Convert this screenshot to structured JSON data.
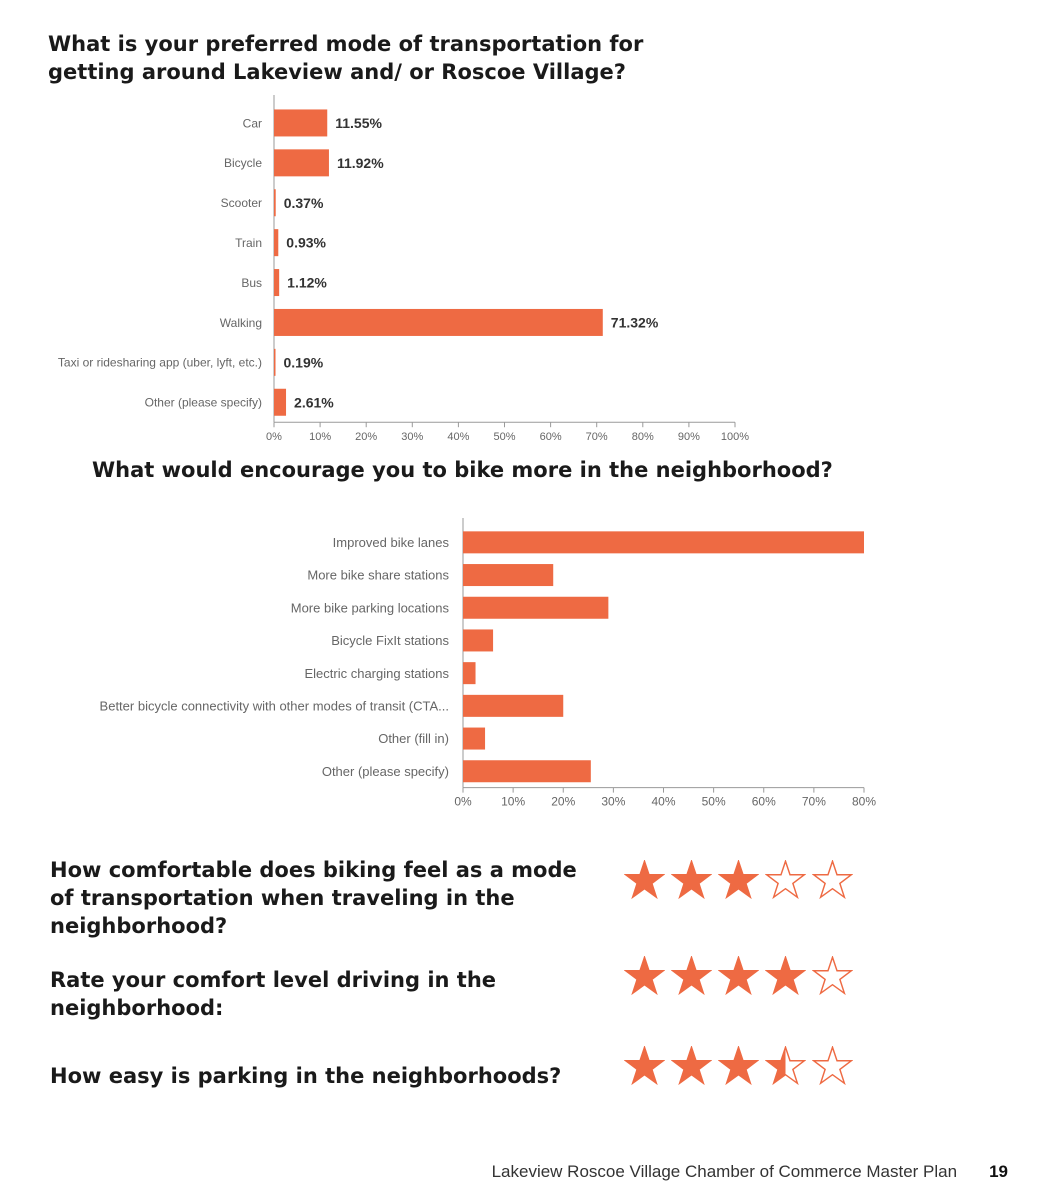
{
  "accent_color": "#EE6A43",
  "chart_data": [
    {
      "type": "bar",
      "orientation": "horizontal",
      "title": "What is your preferred mode of transportation for getting around Lakeview and/ or Roscoe Village?",
      "categories": [
        "Car",
        "Bicycle",
        "Scooter",
        "Train",
        "Bus",
        "Walking",
        "Taxi or ridesharing app (uber, lyft, etc.)",
        "Other (please specify)"
      ],
      "values": [
        11.55,
        11.92,
        0.37,
        0.93,
        1.12,
        71.32,
        0.19,
        2.61
      ],
      "data_labels": [
        "11.55%",
        "11.92%",
        "0.37%",
        "0.93%",
        "1.12%",
        "71.32%",
        "0.19%",
        "2.61%"
      ],
      "xlim": [
        0,
        100
      ],
      "ticks": [
        "0%",
        "10%",
        "20%",
        "30%",
        "40%",
        "50%",
        "60%",
        "70%",
        "80%",
        "90%",
        "100%"
      ],
      "grid": false,
      "color": "#EE6A43"
    },
    {
      "type": "bar",
      "orientation": "horizontal",
      "title": "What would encourage you to bike more in the neighborhood?",
      "categories": [
        "Improved bike lanes",
        "More bike share stations",
        "More bike parking locations",
        "Bicycle FixIt stations",
        "Electric charging stations",
        "Better bicycle connectivity with other modes of transit (CTA...",
        "Other (fill in)",
        "Other (please specify)"
      ],
      "values": [
        80,
        18,
        29,
        6,
        2.5,
        20,
        4.4,
        25.5
      ],
      "xlim": [
        0,
        80
      ],
      "ticks": [
        "0%",
        "10%",
        "20%",
        "30%",
        "40%",
        "50%",
        "60%",
        "70%",
        "80%"
      ],
      "grid": false,
      "color": "#EE6A43"
    }
  ],
  "ratings": [
    {
      "question": "How comfortable does biking feel as a mode of transportation when traveling in the neighborhood?",
      "value": 3,
      "max": 5
    },
    {
      "question": "Rate your comfort level driving in the neighborhood:",
      "value": 4,
      "max": 5
    },
    {
      "question": "How easy is parking in the neighborhoods?",
      "value": 3.5,
      "max": 5
    }
  ],
  "footer": {
    "text": "Lakeview Roscoe Village Chamber of Commerce Master Plan",
    "page": "19"
  }
}
